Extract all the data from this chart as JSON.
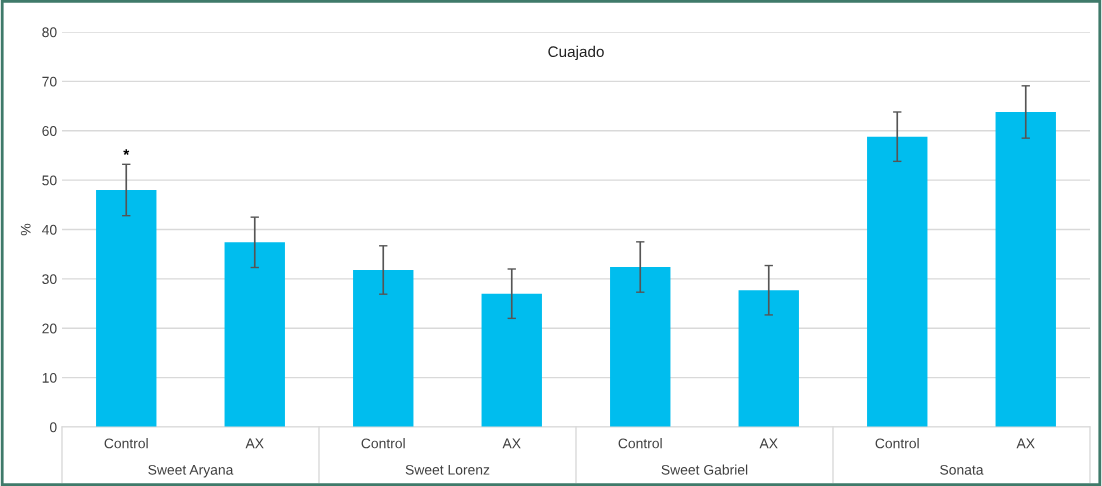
{
  "chart_data": {
    "type": "bar",
    "title": "Cuajado",
    "ylabel": "%",
    "categories": [
      "Control",
      "AX",
      "Control",
      "AX",
      "Control",
      "AX",
      "Control",
      "AX"
    ],
    "values": [
      48.0,
      37.4,
      31.8,
      27.0,
      32.4,
      27.7,
      58.8,
      63.8
    ],
    "errors": [
      5.2,
      5.1,
      4.9,
      5.0,
      5.1,
      5.0,
      5.0,
      5.3
    ],
    "color": "#00bdee",
    "ylim": [
      0,
      80
    ],
    "yticks": [
      0,
      10,
      20,
      30,
      40,
      50,
      60,
      70,
      80
    ],
    "grid": "y",
    "annotations": [
      "*",
      "Sweet Aryana",
      "Sweet Lorenz",
      "Sweet Gabriel",
      "Sonata"
    ]
  }
}
